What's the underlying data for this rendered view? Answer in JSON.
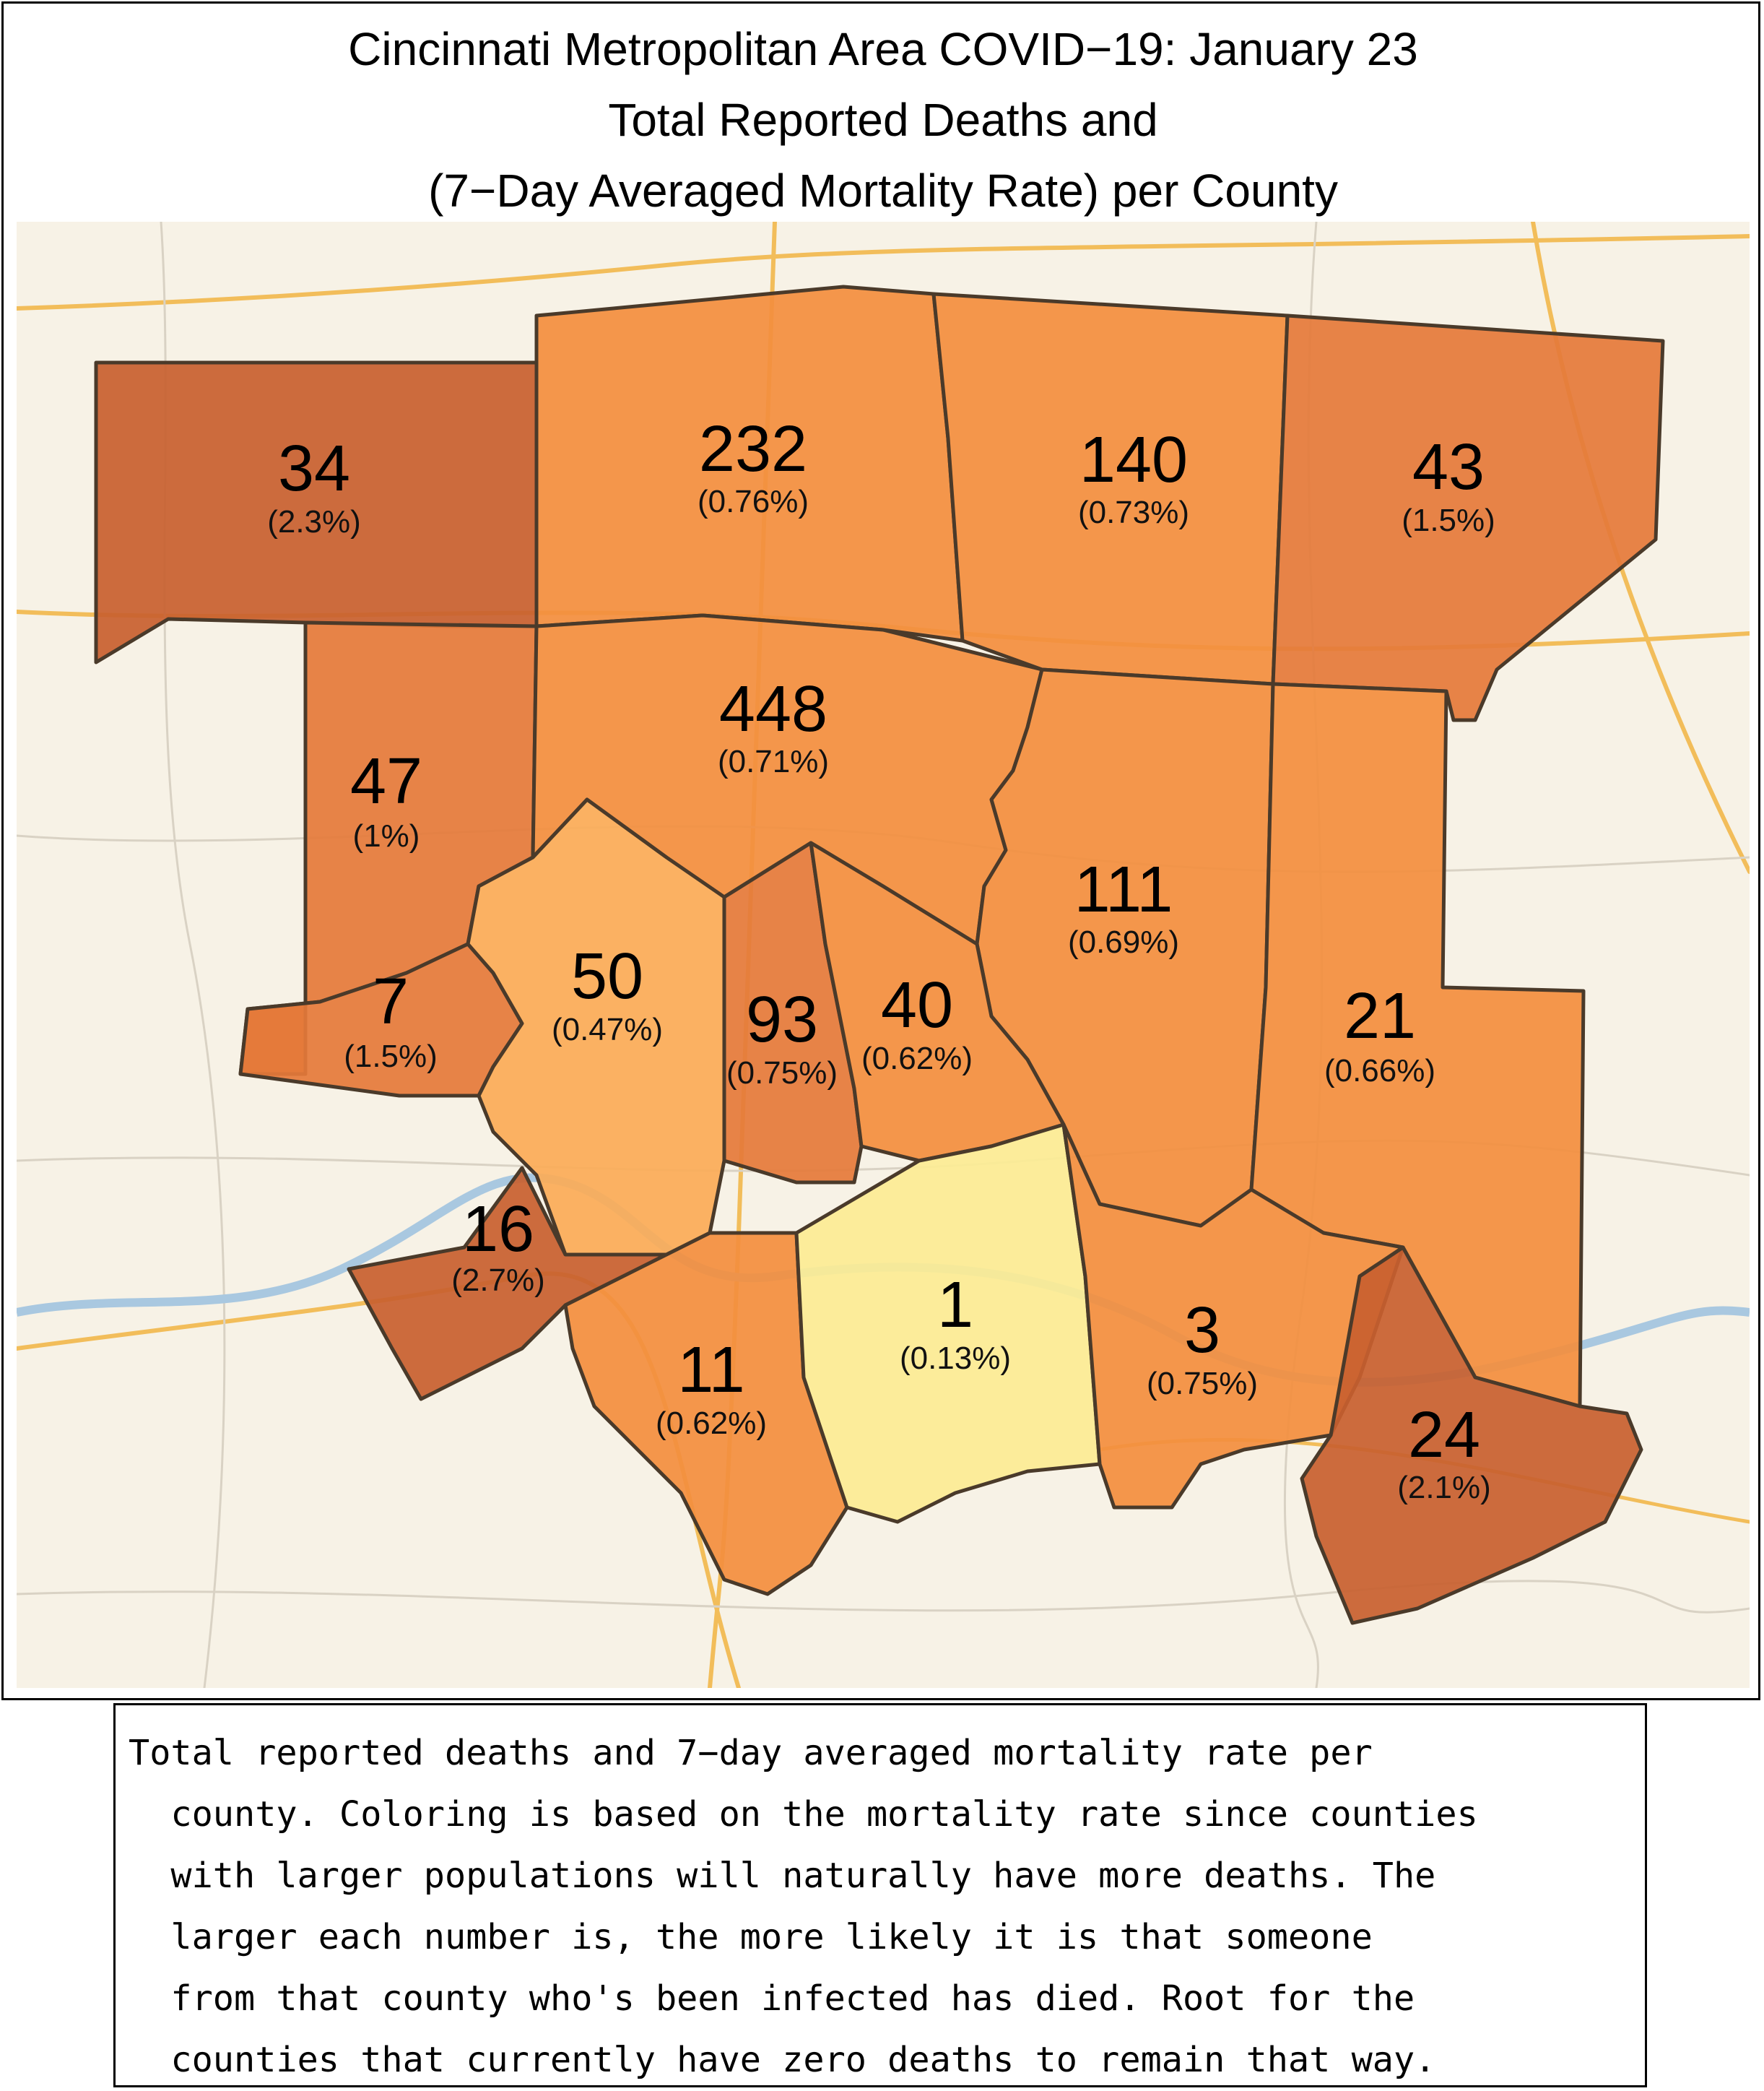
{
  "title": {
    "line1": "Cincinnati Metropolitan Area COVID−19: January 23",
    "line2": "Total Reported Deaths and",
    "line3": "(7−Day Averaged Mortality Rate) per County"
  },
  "colors": {
    "rate_very_low": "#FCEB94",
    "rate_low": "#FBAB57",
    "rate_mid": "#F38E3E",
    "rate_high": "#E5793A",
    "rate_very_high": "#C8602F",
    "county_border": "#4a3a2a",
    "basemap_bg": "#F7F2E6",
    "road_major": "#F2BD5A",
    "river": "#A9C8E0"
  },
  "counties": [
    {
      "id": "nw",
      "deaths": "34",
      "rate": "(2.3%)"
    },
    {
      "id": "n1",
      "deaths": "232",
      "rate": "(0.76%)"
    },
    {
      "id": "n2",
      "deaths": "140",
      "rate": "(0.73%)"
    },
    {
      "id": "ne",
      "deaths": "43",
      "rate": "(1.5%)"
    },
    {
      "id": "w1",
      "deaths": "47",
      "rate": "(1%)"
    },
    {
      "id": "center",
      "deaths": "448",
      "rate": "(0.71%)"
    },
    {
      "id": "e1",
      "deaths": "111",
      "rate": "(0.69%)"
    },
    {
      "id": "e2",
      "deaths": "21",
      "rate": "(0.66%)"
    },
    {
      "id": "w2",
      "deaths": "7",
      "rate": "(1.5%)"
    },
    {
      "id": "sw",
      "deaths": "50",
      "rate": "(0.47%)"
    },
    {
      "id": "s1",
      "deaths": "93",
      "rate": "(0.75%)"
    },
    {
      "id": "s2",
      "deaths": "40",
      "rate": "(0.62%)"
    },
    {
      "id": "w3",
      "deaths": "16",
      "rate": "(2.7%)"
    },
    {
      "id": "s3",
      "deaths": "11",
      "rate": "(0.62%)"
    },
    {
      "id": "s4",
      "deaths": "1",
      "rate": "(0.13%)"
    },
    {
      "id": "s5",
      "deaths": "3",
      "rate": "(0.75%)"
    },
    {
      "id": "se",
      "deaths": "24",
      "rate": "(2.1%)"
    }
  ],
  "caption": {
    "line1": "Total reported deaths and 7−day averaged mortality rate per",
    "line2": "  county. Coloring is based on the mortality rate since counties",
    "line3": "  with larger populations will naturally have more deaths. The",
    "line4": "  larger each number is, the more likely it is that someone",
    "line5": "  from that county who's been infected has died. Root for the",
    "line6": "  counties that currently have zero deaths to remain that way."
  }
}
